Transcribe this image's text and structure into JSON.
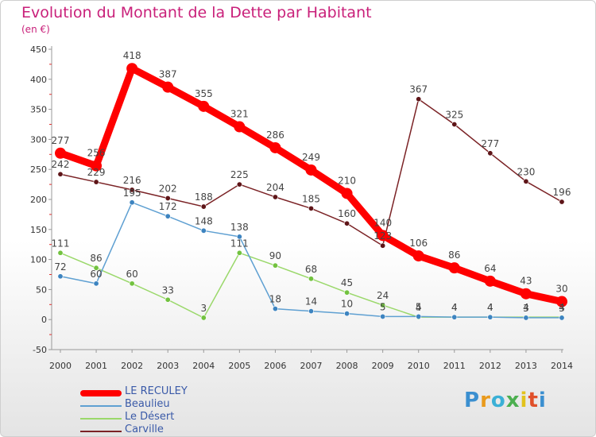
{
  "title": "Evolution du Montant de la Dette par Habitant",
  "subtitle": "(en €)",
  "logo": {
    "text": "Proxiti",
    "letter_colors": [
      "#3b8fd0",
      "#e99a1c",
      "#3bb0d6",
      "#4caf50",
      "#e2c21c",
      "#e0502a",
      "#3b8fd0"
    ]
  },
  "chart_data": {
    "type": "line",
    "title": "Evolution du Montant de la Dette par Habitant",
    "ylabel": "(en €)",
    "xlabel": "",
    "x": [
      "2000",
      "2001",
      "2002",
      "2003",
      "2004",
      "2005",
      "2006",
      "2007",
      "2008",
      "2009",
      "2010",
      "2011",
      "2012",
      "2013",
      "2014"
    ],
    "y_ticks": [
      "-50",
      "0",
      "50",
      "100",
      "150",
      "200",
      "250",
      "300",
      "350",
      "400",
      "450"
    ],
    "ylim": [
      -50,
      450
    ],
    "grid": false,
    "legend_position": "bottom-left",
    "series": [
      {
        "name": "Carville",
        "color": "#7b2326",
        "marker_color": "#5e1518",
        "emphasis": false,
        "values": [
          242,
          229,
          216,
          202,
          188,
          225,
          204,
          185,
          160,
          123,
          367,
          325,
          277,
          230,
          196
        ],
        "labels": [
          "242",
          "229",
          "216",
          "202",
          "188",
          "225",
          "204",
          "185",
          "160",
          "123",
          "367",
          "325",
          "277",
          "230",
          "196"
        ]
      },
      {
        "name": "Le Désert",
        "color": "#9ad86a",
        "marker_color": "#72c23f",
        "emphasis": false,
        "values": [
          111,
          86,
          60,
          33,
          3,
          111,
          90,
          68,
          45,
          24,
          4,
          4,
          4,
          4,
          4
        ],
        "labels": [
          "111",
          "86",
          "60",
          "33",
          "3",
          "111",
          "90",
          "68",
          "45",
          "24",
          "4",
          "4",
          "4",
          "4",
          "4"
        ]
      },
      {
        "name": "Beaulieu",
        "color": "#5fa0d2",
        "marker_color": "#3d84c0",
        "emphasis": false,
        "values": [
          72,
          60,
          195,
          172,
          148,
          138,
          18,
          14,
          10,
          5,
          5,
          4,
          4,
          3,
          3
        ],
        "labels": [
          "72",
          "60",
          "195",
          "172",
          "148",
          "138",
          "18",
          "14",
          "10",
          "5",
          "5",
          "4",
          "4",
          "3",
          "3"
        ]
      },
      {
        "name": "LE RECULEY",
        "color": "#ff0000",
        "marker_color": "#ff0000",
        "emphasis": true,
        "values": [
          277,
          256,
          418,
          387,
          355,
          321,
          286,
          249,
          210,
          140,
          106,
          86,
          64,
          43,
          30
        ],
        "labels": [
          "277",
          "256",
          "418",
          "387",
          "355",
          "321",
          "286",
          "249",
          "210",
          "140",
          "106",
          "86",
          "64",
          "43",
          "30"
        ]
      }
    ],
    "legend_order": [
      "LE RECULEY",
      "Beaulieu",
      "Le Désert",
      "Carville"
    ]
  }
}
